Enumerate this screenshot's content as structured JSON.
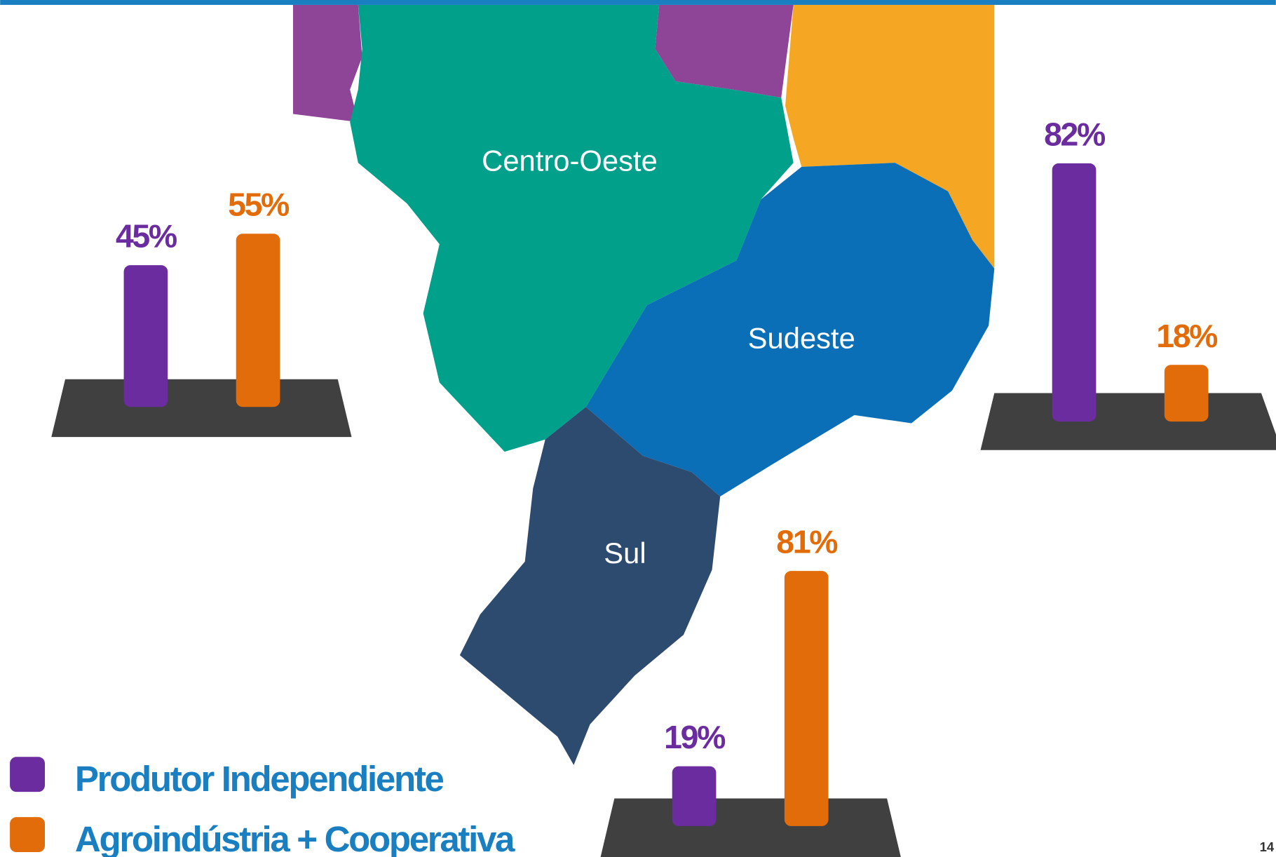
{
  "chart_data": {
    "type": "bar",
    "categories": [
      "Centro-Oeste",
      "Sudeste",
      "Sul"
    ],
    "series": [
      {
        "name": "Produtor Independiente",
        "color": "#6a2c9e",
        "values": [
          45,
          82,
          19
        ],
        "value_labels": [
          "45%",
          "82%",
          "19%"
        ]
      },
      {
        "name": "Agroindústria + Cooperativa",
        "color": "#e36c0a",
        "values": [
          55,
          18,
          81
        ],
        "value_labels": [
          "55%",
          "18%",
          "81%"
        ]
      }
    ],
    "ylim": [
      0,
      100
    ]
  },
  "page": {
    "number": "14"
  }
}
